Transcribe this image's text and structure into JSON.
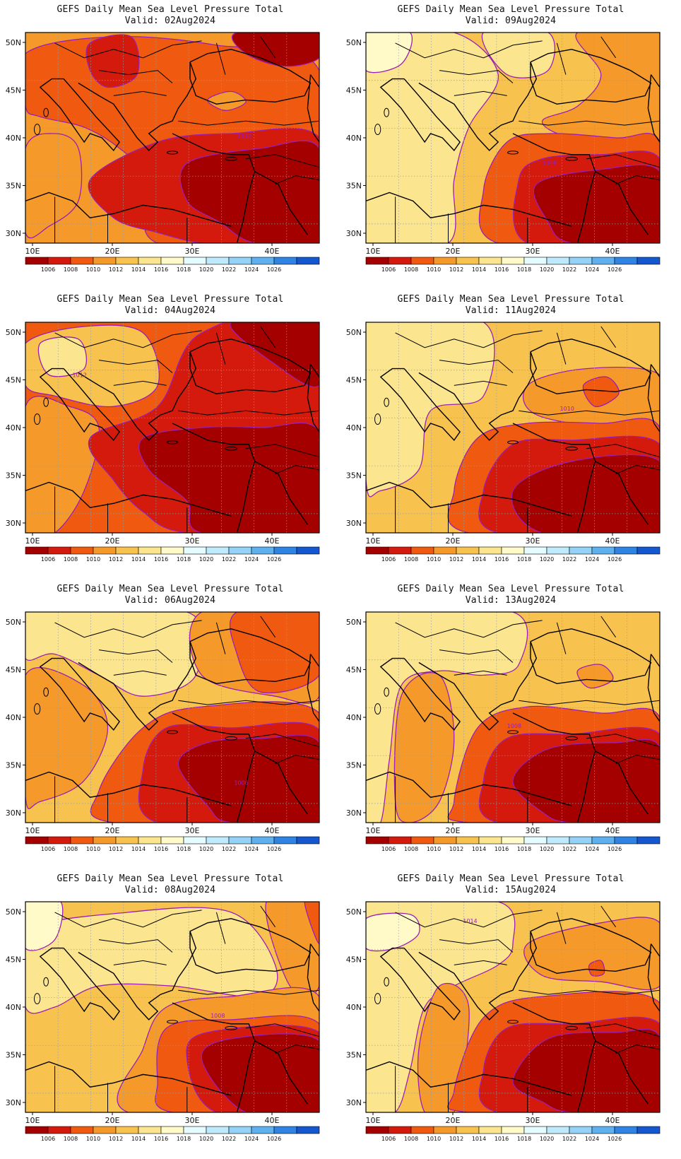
{
  "figure": {
    "lat_ticks": [
      "50N",
      "45N",
      "40N",
      "35N",
      "30N"
    ],
    "lon_ticks": [
      "10E",
      "20E",
      "30E",
      "40E"
    ],
    "colorbar_labels": [
      "1006",
      "1008",
      "1010",
      "1012",
      "1014",
      "1016",
      "1018",
      "1020",
      "1022",
      "1024",
      "1026"
    ],
    "colorbar_colors": [
      "#a50000",
      "#d31a0d",
      "#f05a10",
      "#f59a2a",
      "#f8c24e",
      "#fce58f",
      "#fffac8",
      "#e4fbff",
      "#bfeafc",
      "#94d2f7",
      "#5fb0ef",
      "#2f83e2",
      "#1457cf"
    ],
    "contour_color": "#9b1fb5",
    "coast_color": "#000000",
    "grid": "dotted"
  },
  "panels": [
    {
      "title": "GEFS Daily Mean Sea Level Pressure Total",
      "valid": "Valid: 02Aug2024",
      "contour_label": "1010"
    },
    {
      "title": "GEFS Daily Mean Sea Level Pressure Total",
      "valid": "Valid: 09Aug2024",
      "contour_label": "1008"
    },
    {
      "title": "GEFS Daily Mean Sea Level Pressure Total",
      "valid": "Valid: 04Aug2024",
      "contour_label": "1012"
    },
    {
      "title": "GEFS Daily Mean Sea Level Pressure Total",
      "valid": "Valid: 11Aug2024",
      "contour_label": "1010"
    },
    {
      "title": "GEFS Daily Mean Sea Level Pressure Total",
      "valid": "Valid: 06Aug2024",
      "contour_label": "1006"
    },
    {
      "title": "GEFS Daily Mean Sea Level Pressure Total",
      "valid": "Valid: 13Aug2024",
      "contour_label": "1008"
    },
    {
      "title": "GEFS Daily Mean Sea Level Pressure Total",
      "valid": "Valid: 08Aug2024",
      "contour_label": "1008"
    },
    {
      "title": "GEFS Daily Mean Sea Level Pressure Total",
      "valid": "Valid: 15Aug2024",
      "contour_label": "1014"
    }
  ]
}
